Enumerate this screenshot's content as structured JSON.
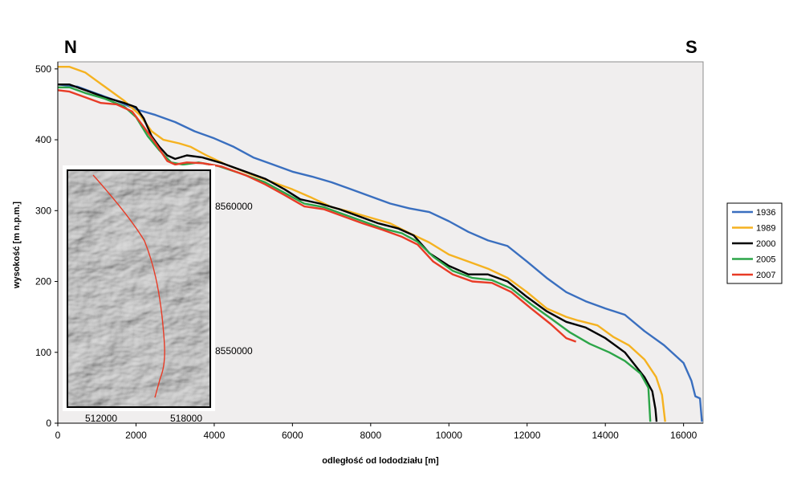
{
  "compass": {
    "north": "N",
    "south": "S"
  },
  "chart_data": {
    "type": "line",
    "xlabel": "odległość od lododziału [m]",
    "ylabel": "wysokość [m n.p.m.]",
    "xlim": [
      0,
      16500
    ],
    "ylim": [
      0,
      510
    ],
    "xticks": [
      0,
      2000,
      4000,
      6000,
      8000,
      10000,
      12000,
      14000,
      16000
    ],
    "yticks": [
      0,
      100,
      200,
      300,
      400,
      500
    ],
    "grid": false,
    "legend_position": "right",
    "background": "#f0eeee",
    "series": [
      {
        "name": "1936",
        "color": "#3a6fbf",
        "points": [
          [
            0,
            478
          ],
          [
            500,
            475
          ],
          [
            1000,
            465
          ],
          [
            1500,
            455
          ],
          [
            2000,
            443
          ],
          [
            2500,
            435
          ],
          [
            3000,
            425
          ],
          [
            3500,
            412
          ],
          [
            4000,
            402
          ],
          [
            4500,
            390
          ],
          [
            5000,
            375
          ],
          [
            5500,
            365
          ],
          [
            6000,
            355
          ],
          [
            6500,
            348
          ],
          [
            7000,
            340
          ],
          [
            7500,
            330
          ],
          [
            8000,
            320
          ],
          [
            8500,
            310
          ],
          [
            9000,
            303
          ],
          [
            9500,
            298
          ],
          [
            10000,
            285
          ],
          [
            10500,
            270
          ],
          [
            11000,
            258
          ],
          [
            11500,
            250
          ],
          [
            12000,
            228
          ],
          [
            12500,
            205
          ],
          [
            13000,
            185
          ],
          [
            13500,
            172
          ],
          [
            14000,
            162
          ],
          [
            14500,
            153
          ],
          [
            15000,
            130
          ],
          [
            15500,
            110
          ],
          [
            16000,
            85
          ],
          [
            16200,
            60
          ],
          [
            16300,
            38
          ],
          [
            16420,
            35
          ],
          [
            16470,
            2
          ]
        ]
      },
      {
        "name": "1989",
        "color": "#f5b220",
        "points": [
          [
            0,
            503
          ],
          [
            300,
            503
          ],
          [
            700,
            495
          ],
          [
            1200,
            475
          ],
          [
            1700,
            455
          ],
          [
            2100,
            435
          ],
          [
            2400,
            412
          ],
          [
            2700,
            400
          ],
          [
            3100,
            395
          ],
          [
            3400,
            390
          ],
          [
            3800,
            378
          ],
          [
            4300,
            365
          ],
          [
            5000,
            350
          ],
          [
            5500,
            340
          ],
          [
            6000,
            330
          ],
          [
            6500,
            318
          ],
          [
            7000,
            305
          ],
          [
            7500,
            298
          ],
          [
            8000,
            290
          ],
          [
            8500,
            282
          ],
          [
            9000,
            268
          ],
          [
            9500,
            255
          ],
          [
            10000,
            238
          ],
          [
            10500,
            228
          ],
          [
            11000,
            218
          ],
          [
            11500,
            205
          ],
          [
            12000,
            185
          ],
          [
            12500,
            162
          ],
          [
            13000,
            150
          ],
          [
            13300,
            145
          ],
          [
            13800,
            138
          ],
          [
            14200,
            122
          ],
          [
            14600,
            110
          ],
          [
            15000,
            90
          ],
          [
            15300,
            65
          ],
          [
            15450,
            40
          ],
          [
            15530,
            2
          ]
        ]
      },
      {
        "name": "2000",
        "color": "#000000",
        "points": [
          [
            0,
            478
          ],
          [
            300,
            478
          ],
          [
            700,
            470
          ],
          [
            1200,
            460
          ],
          [
            1700,
            452
          ],
          [
            2000,
            446
          ],
          [
            2200,
            430
          ],
          [
            2400,
            405
          ],
          [
            2600,
            390
          ],
          [
            2800,
            378
          ],
          [
            3000,
            373
          ],
          [
            3300,
            378
          ],
          [
            3700,
            375
          ],
          [
            4200,
            367
          ],
          [
            4800,
            355
          ],
          [
            5300,
            345
          ],
          [
            5800,
            330
          ],
          [
            6200,
            316
          ],
          [
            6700,
            310
          ],
          [
            7200,
            302
          ],
          [
            7700,
            292
          ],
          [
            8200,
            282
          ],
          [
            8700,
            275
          ],
          [
            9100,
            265
          ],
          [
            9500,
            240
          ],
          [
            10000,
            222
          ],
          [
            10500,
            210
          ],
          [
            11000,
            210
          ],
          [
            11500,
            200
          ],
          [
            12000,
            178
          ],
          [
            12500,
            158
          ],
          [
            13000,
            143
          ],
          [
            13500,
            135
          ],
          [
            14000,
            120
          ],
          [
            14500,
            100
          ],
          [
            15000,
            65
          ],
          [
            15200,
            45
          ],
          [
            15280,
            20
          ],
          [
            15310,
            2
          ]
        ]
      },
      {
        "name": "2005",
        "color": "#2ca548",
        "points": [
          [
            0,
            474
          ],
          [
            300,
            474
          ],
          [
            700,
            466
          ],
          [
            1200,
            458
          ],
          [
            1700,
            447
          ],
          [
            2000,
            432
          ],
          [
            2300,
            405
          ],
          [
            2600,
            385
          ],
          [
            2900,
            368
          ],
          [
            3200,
            365
          ],
          [
            3600,
            368
          ],
          [
            4100,
            363
          ],
          [
            4700,
            352
          ],
          [
            5300,
            340
          ],
          [
            5800,
            325
          ],
          [
            6300,
            310
          ],
          [
            6800,
            305
          ],
          [
            7300,
            295
          ],
          [
            7800,
            285
          ],
          [
            8300,
            275
          ],
          [
            8800,
            268
          ],
          [
            9200,
            256
          ],
          [
            9600,
            235
          ],
          [
            10100,
            215
          ],
          [
            10600,
            205
          ],
          [
            11100,
            202
          ],
          [
            11600,
            190
          ],
          [
            12100,
            168
          ],
          [
            12600,
            148
          ],
          [
            13100,
            128
          ],
          [
            13600,
            112
          ],
          [
            14100,
            100
          ],
          [
            14500,
            88
          ],
          [
            14900,
            70
          ],
          [
            15100,
            50
          ],
          [
            15150,
            2
          ]
        ]
      },
      {
        "name": "2007",
        "color": "#e83b26",
        "points": [
          [
            0,
            470
          ],
          [
            300,
            468
          ],
          [
            700,
            460
          ],
          [
            1100,
            452
          ],
          [
            1500,
            450
          ],
          [
            1900,
            440
          ],
          [
            2200,
            418
          ],
          [
            2500,
            395
          ],
          [
            2800,
            370
          ],
          [
            3000,
            365
          ],
          [
            3300,
            368
          ],
          [
            3700,
            367
          ],
          [
            4200,
            362
          ],
          [
            4800,
            350
          ],
          [
            5300,
            337
          ],
          [
            5800,
            322
          ],
          [
            6300,
            306
          ],
          [
            6800,
            302
          ],
          [
            7300,
            292
          ],
          [
            7800,
            282
          ],
          [
            8300,
            273
          ],
          [
            8800,
            263
          ],
          [
            9200,
            252
          ],
          [
            9600,
            228
          ],
          [
            10100,
            210
          ],
          [
            10600,
            200
          ],
          [
            11100,
            198
          ],
          [
            11600,
            185
          ],
          [
            12100,
            162
          ],
          [
            12600,
            140
          ],
          [
            13000,
            120
          ],
          [
            13250,
            115
          ]
        ]
      }
    ]
  },
  "inset": {
    "name": "glacier shaded-relief map",
    "route_color": "#e83b26",
    "x_ticks": [
      "512000",
      "518000"
    ],
    "y_ticks": [
      "8560000",
      "8550000"
    ]
  }
}
